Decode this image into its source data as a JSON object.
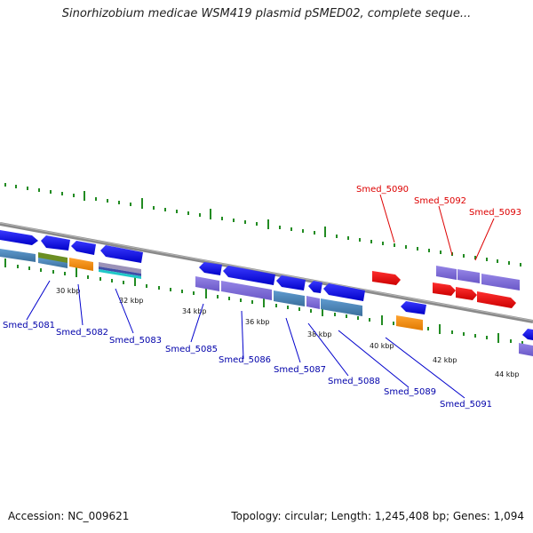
{
  "title": "Sinorhizobium medicae WSM419 plasmid pSMED02, complete seque...",
  "footer": {
    "accession": "Accession: NC_009621",
    "summary": "Topology: circular; Length: 1,245,408 bp; Genes: 1,094"
  },
  "colors": {
    "plus_strand": "#0000ee",
    "minus_strand_highlight": "#ee0000",
    "cds_purple": "#7b68d8",
    "rna_blue": "#4682b4",
    "orange": "#ff8c00",
    "tick_green": "#228b22",
    "backbone": "#808080",
    "label_blue": "#0000aa",
    "label_red": "#dd0000"
  },
  "scale_labels": [
    "30 kbp",
    "32 kbp",
    "34 kbp",
    "36 kbp",
    "38 kbp",
    "40 kbp",
    "42 kbp",
    "44 kbp"
  ],
  "gene_labels": [
    {
      "name": "Smed_5081",
      "color": "blue"
    },
    {
      "name": "Smed_5082",
      "color": "blue"
    },
    {
      "name": "Smed_5083",
      "color": "blue"
    },
    {
      "name": "Smed_5085",
      "color": "blue"
    },
    {
      "name": "Smed_5086",
      "color": "blue"
    },
    {
      "name": "Smed_5087",
      "color": "blue"
    },
    {
      "name": "Smed_5088",
      "color": "blue"
    },
    {
      "name": "Smed_5089",
      "color": "blue"
    },
    {
      "name": "Smed_5091",
      "color": "blue"
    },
    {
      "name": "Smed_5090",
      "color": "red"
    },
    {
      "name": "Smed_5092",
      "color": "red"
    },
    {
      "name": "Smed_5093",
      "color": "red"
    }
  ]
}
